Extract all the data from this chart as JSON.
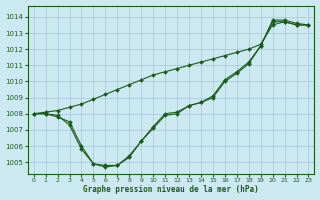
{
  "title": "Graphe pression niveau de la mer (hPa)",
  "background_color": "#cce8f0",
  "grid_color": "#aaccdd",
  "line_color": "#1a5c1a",
  "xlim": [
    -0.5,
    23.5
  ],
  "ylim": [
    1004.3,
    1014.7
  ],
  "yticks": [
    1005,
    1006,
    1007,
    1008,
    1009,
    1010,
    1011,
    1012,
    1013,
    1014
  ],
  "xticks": [
    0,
    1,
    2,
    3,
    4,
    5,
    6,
    7,
    8,
    9,
    10,
    11,
    12,
    13,
    14,
    15,
    16,
    17,
    18,
    19,
    20,
    21,
    22,
    23
  ],
  "series1_x": [
    0,
    1,
    2,
    3,
    4,
    5,
    6,
    7,
    8,
    9,
    10,
    11,
    12,
    13,
    14,
    15,
    16,
    17,
    18,
    19,
    20,
    21,
    22,
    23
  ],
  "series1_y": [
    1008.0,
    1008.1,
    1008.2,
    1008.4,
    1008.6,
    1008.9,
    1009.2,
    1009.5,
    1009.8,
    1010.1,
    1010.4,
    1010.6,
    1010.8,
    1011.0,
    1011.2,
    1011.4,
    1011.6,
    1011.8,
    1012.0,
    1012.3,
    1013.5,
    1013.7,
    1013.5,
    1013.5
  ],
  "series2_x": [
    0,
    1,
    2,
    3,
    4,
    5,
    6,
    7,
    8,
    9,
    10,
    11,
    12,
    13,
    14,
    15,
    16,
    17,
    18,
    19,
    20,
    21,
    22,
    23
  ],
  "series2_y": [
    1008.0,
    1008.0,
    1007.8,
    1007.5,
    1006.0,
    1004.9,
    1004.8,
    1004.8,
    1005.3,
    1006.3,
    1007.1,
    1007.9,
    1008.0,
    1008.5,
    1008.7,
    1009.0,
    1010.0,
    1010.5,
    1011.1,
    1012.2,
    1013.7,
    1013.7,
    1013.5,
    1013.5
  ],
  "series3_x": [
    0,
    1,
    2,
    3,
    4,
    5,
    6,
    7,
    8,
    9,
    10,
    11,
    12,
    13,
    14,
    15,
    16,
    17,
    18,
    19,
    20,
    21,
    22,
    23
  ],
  "series3_y": [
    1008.0,
    1008.0,
    1007.9,
    1007.3,
    1005.8,
    1004.9,
    1004.7,
    1004.8,
    1005.4,
    1006.3,
    1007.2,
    1008.0,
    1008.1,
    1008.5,
    1008.7,
    1009.1,
    1010.1,
    1010.6,
    1011.2,
    1012.2,
    1013.8,
    1013.8,
    1013.6,
    1013.5
  ]
}
